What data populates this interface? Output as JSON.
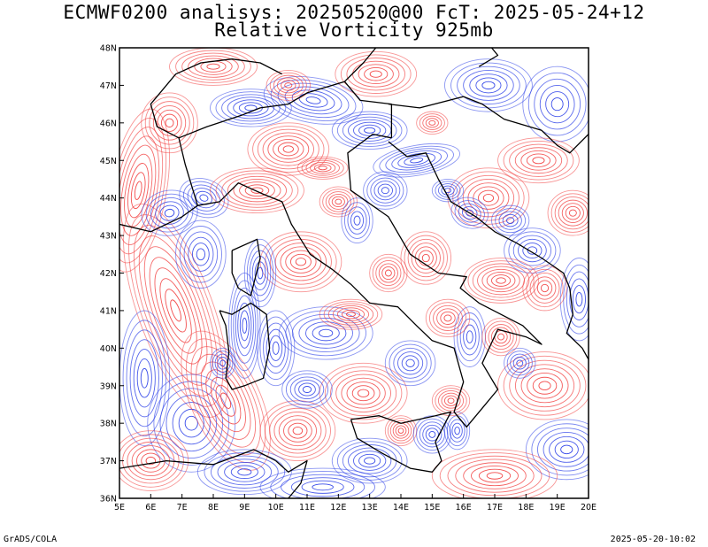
{
  "title": {
    "line1": "ECMWF0200 analisys: 20250520@00 FcT: 2025-05-24+12",
    "line2": "Relative Vorticity 925mb"
  },
  "map": {
    "lon_range": [
      5,
      20
    ],
    "lat_range": [
      36,
      48
    ],
    "lon_ticks": [
      "5E",
      "6E",
      "7E",
      "8E",
      "9E",
      "10E",
      "11E",
      "12E",
      "13E",
      "14E",
      "15E",
      "16E",
      "17E",
      "18E",
      "19E",
      "20E"
    ],
    "lat_ticks": [
      "36N",
      "37N",
      "38N",
      "39N",
      "40N",
      "41N",
      "42N",
      "43N",
      "44N",
      "45N",
      "46N",
      "47N",
      "48N"
    ],
    "colors": {
      "positive": "#f24040",
      "negative": "#2b3fe8",
      "coast": "#000000"
    }
  },
  "footer": {
    "credit": "GrADS/COLA",
    "timestamp": "2025-05-20-10:02"
  }
}
